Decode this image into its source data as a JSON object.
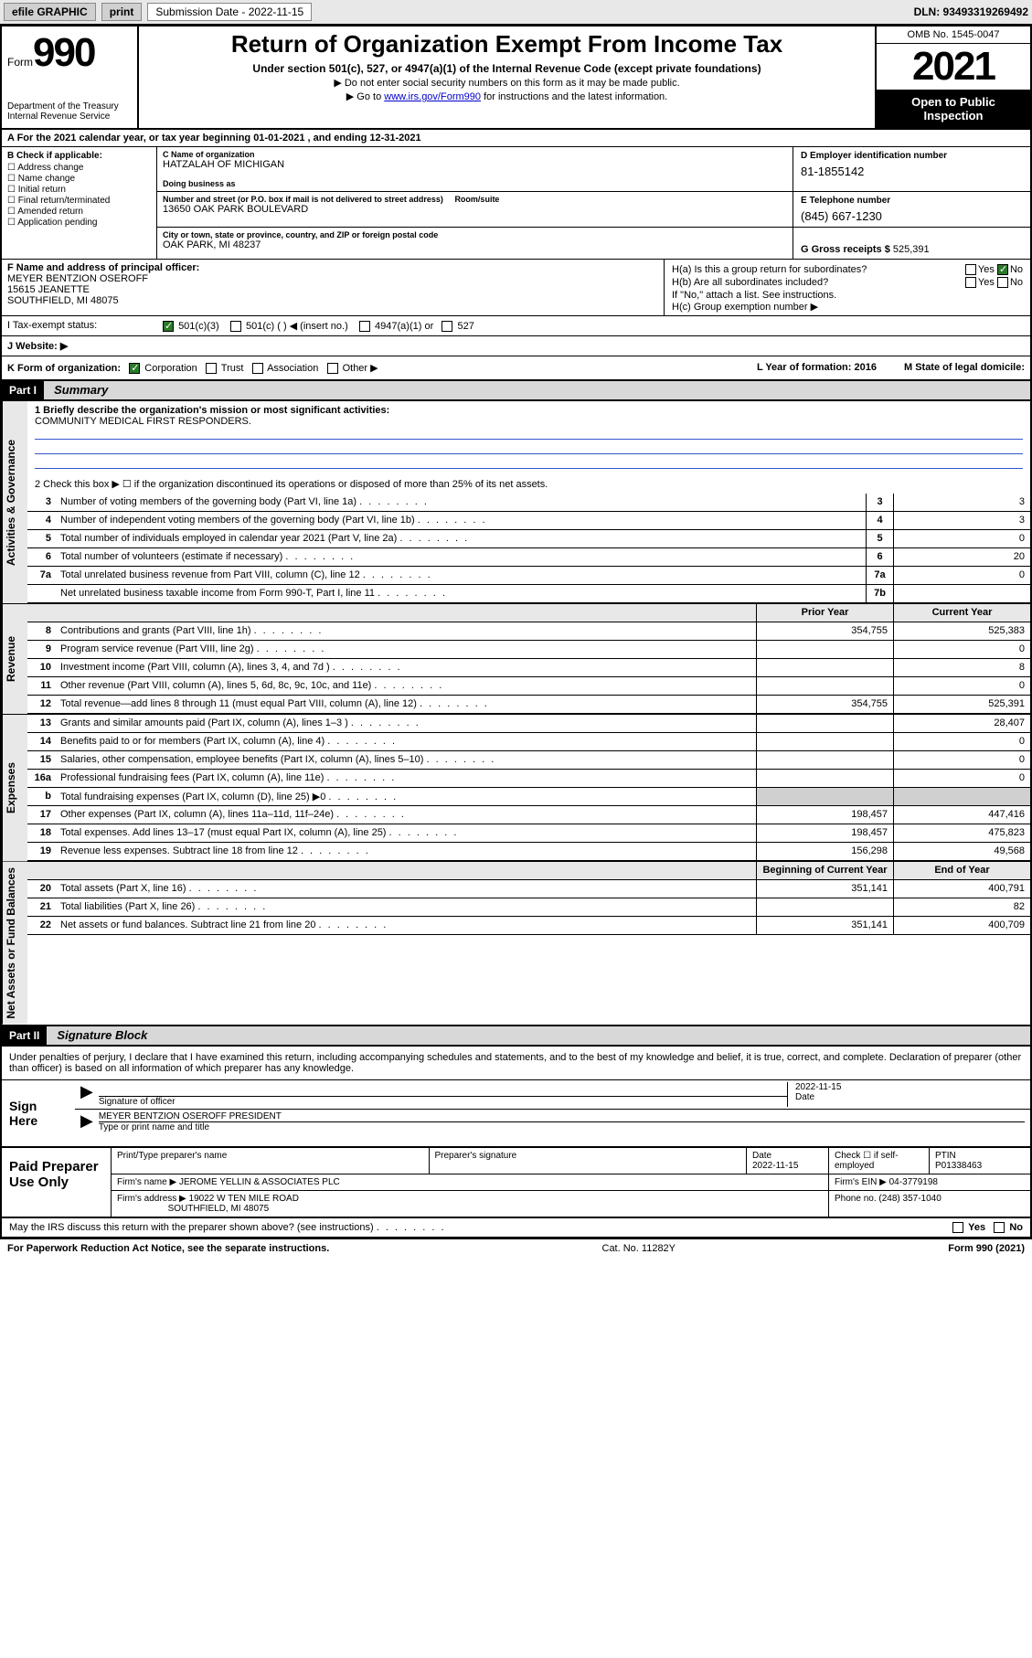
{
  "topbar": {
    "efile": "efile GRAPHIC",
    "print": "print",
    "sub_label": "Submission Date - 2022-11-15",
    "dln": "DLN: 93493319269492"
  },
  "header": {
    "form_label": "Form",
    "form_num": "990",
    "dept": "Department of the Treasury",
    "irs": "Internal Revenue Service",
    "title": "Return of Organization Exempt From Income Tax",
    "sub": "Under section 501(c), 527, or 4947(a)(1) of the Internal Revenue Code (except private foundations)",
    "note1": "▶ Do not enter social security numbers on this form as it may be made public.",
    "note2_pre": "▶ Go to ",
    "note2_link": "www.irs.gov/Form990",
    "note2_post": " for instructions and the latest information.",
    "omb": "OMB No. 1545-0047",
    "year": "2021",
    "inspect": "Open to Public Inspection"
  },
  "rowA": "A For the 2021 calendar year, or tax year beginning 01-01-2021   , and ending 12-31-2021",
  "colB": {
    "label": "B Check if applicable:",
    "items": [
      "Address change",
      "Name change",
      "Initial return",
      "Final return/terminated",
      "Amended return",
      "Application pending"
    ]
  },
  "colC": {
    "name_lbl": "C Name of organization",
    "name": "HATZALAH OF MICHIGAN",
    "dba_lbl": "Doing business as",
    "addr_lbl": "Number and street (or P.O. box if mail is not delivered to street address)",
    "room_lbl": "Room/suite",
    "addr": "13650 OAK PARK BOULEVARD",
    "city_lbl": "City or town, state or province, country, and ZIP or foreign postal code",
    "city": "OAK PARK, MI  48237"
  },
  "colD": {
    "ein_lbl": "D Employer identification number",
    "ein": "81-1855142",
    "tel_lbl": "E Telephone number",
    "tel": "(845) 667-1230",
    "gross_lbl": "G Gross receipts $",
    "gross": "525,391"
  },
  "colF": {
    "lbl": "F Name and address of principal officer:",
    "name": "MEYER BENTZION OSEROFF",
    "addr1": "15615 JEANETTE",
    "addr2": "SOUTHFIELD, MI  48075"
  },
  "colH": {
    "a": "H(a)  Is this a group return for subordinates?",
    "a_yes": "Yes",
    "a_no": "No",
    "b": "H(b)  Are all subordinates included?",
    "b_yes": "Yes",
    "b_no": "No",
    "b_note": "If \"No,\" attach a list. See instructions.",
    "c": "H(c)  Group exemption number ▶"
  },
  "rowI": {
    "lbl": "I   Tax-exempt status:",
    "c3": "501(c)(3)",
    "c": "501(c) (  ) ◀ (insert no.)",
    "a1": "4947(a)(1) or",
    "s527": "527"
  },
  "rowJ": {
    "lbl": "J   Website: ▶"
  },
  "rowK": {
    "lbl": "K Form of organization:",
    "corp": "Corporation",
    "trust": "Trust",
    "assoc": "Association",
    "other": "Other ▶",
    "l": "L Year of formation: 2016",
    "m": "M State of legal domicile:"
  },
  "parts": {
    "p1": "Part I",
    "p1_title": "Summary",
    "p2": "Part II",
    "p2_title": "Signature Block"
  },
  "sidebar": {
    "gov": "Activities & Governance",
    "rev": "Revenue",
    "exp": "Expenses",
    "net": "Net Assets or Fund Balances"
  },
  "mission": {
    "lbl": "1   Briefly describe the organization's mission or most significant activities:",
    "txt": "COMMUNITY MEDICAL FIRST RESPONDERS."
  },
  "line2": "2   Check this box ▶ ☐  if the organization discontinued its operations or disposed of more than 25% of its net assets.",
  "gov_rows": [
    {
      "n": "3",
      "t": "Number of voting members of the governing body (Part VI, line 1a)",
      "box": "3",
      "v": "3"
    },
    {
      "n": "4",
      "t": "Number of independent voting members of the governing body (Part VI, line 1b)",
      "box": "4",
      "v": "3"
    },
    {
      "n": "5",
      "t": "Total number of individuals employed in calendar year 2021 (Part V, line 2a)",
      "box": "5",
      "v": "0"
    },
    {
      "n": "6",
      "t": "Total number of volunteers (estimate if necessary)",
      "box": "6",
      "v": "20"
    },
    {
      "n": "7a",
      "t": "Total unrelated business revenue from Part VIII, column (C), line 12",
      "box": "7a",
      "v": "0"
    },
    {
      "n": "",
      "t": "Net unrelated business taxable income from Form 990-T, Part I, line 11",
      "box": "7b",
      "v": ""
    }
  ],
  "col_hdrs": {
    "prior": "Prior Year",
    "current": "Current Year",
    "begin": "Beginning of Current Year",
    "end": "End of Year"
  },
  "rev_rows": [
    {
      "n": "8",
      "t": "Contributions and grants (Part VIII, line 1h)",
      "p": "354,755",
      "c": "525,383"
    },
    {
      "n": "9",
      "t": "Program service revenue (Part VIII, line 2g)",
      "p": "",
      "c": "0"
    },
    {
      "n": "10",
      "t": "Investment income (Part VIII, column (A), lines 3, 4, and 7d )",
      "p": "",
      "c": "8"
    },
    {
      "n": "11",
      "t": "Other revenue (Part VIII, column (A), lines 5, 6d, 8c, 9c, 10c, and 11e)",
      "p": "",
      "c": "0"
    },
    {
      "n": "12",
      "t": "Total revenue—add lines 8 through 11 (must equal Part VIII, column (A), line 12)",
      "p": "354,755",
      "c": "525,391"
    }
  ],
  "exp_rows": [
    {
      "n": "13",
      "t": "Grants and similar amounts paid (Part IX, column (A), lines 1–3 )",
      "p": "",
      "c": "28,407"
    },
    {
      "n": "14",
      "t": "Benefits paid to or for members (Part IX, column (A), line 4)",
      "p": "",
      "c": "0"
    },
    {
      "n": "15",
      "t": "Salaries, other compensation, employee benefits (Part IX, column (A), lines 5–10)",
      "p": "",
      "c": "0"
    },
    {
      "n": "16a",
      "t": "Professional fundraising fees (Part IX, column (A), line 11e)",
      "p": "",
      "c": "0"
    },
    {
      "n": "b",
      "t": "Total fundraising expenses (Part IX, column (D), line 25) ▶0",
      "p": "shade",
      "c": "shade"
    },
    {
      "n": "17",
      "t": "Other expenses (Part IX, column (A), lines 11a–11d, 11f–24e)",
      "p": "198,457",
      "c": "447,416"
    },
    {
      "n": "18",
      "t": "Total expenses. Add lines 13–17 (must equal Part IX, column (A), line 25)",
      "p": "198,457",
      "c": "475,823"
    },
    {
      "n": "19",
      "t": "Revenue less expenses. Subtract line 18 from line 12",
      "p": "156,298",
      "c": "49,568"
    }
  ],
  "net_rows": [
    {
      "n": "20",
      "t": "Total assets (Part X, line 16)",
      "p": "351,141",
      "c": "400,791"
    },
    {
      "n": "21",
      "t": "Total liabilities (Part X, line 26)",
      "p": "",
      "c": "82"
    },
    {
      "n": "22",
      "t": "Net assets or fund balances. Subtract line 21 from line 20",
      "p": "351,141",
      "c": "400,709"
    }
  ],
  "penalty": "Under penalties of perjury, I declare that I have examined this return, including accompanying schedules and statements, and to the best of my knowledge and belief, it is true, correct, and complete. Declaration of preparer (other than officer) is based on all information of which preparer has any knowledge.",
  "sign": {
    "here": "Sign Here",
    "sig_lbl": "Signature of officer",
    "date_lbl": "Date",
    "date": "2022-11-15",
    "name": "MEYER BENTZION OSEROFF  PRESIDENT",
    "name_lbl": "Type or print name and title"
  },
  "prep": {
    "title": "Paid Preparer Use Only",
    "h1": "Print/Type preparer's name",
    "h2": "Preparer's signature",
    "h3": "Date",
    "h4": "Check ☐ if self-employed",
    "h5": "PTIN",
    "date": "2022-11-15",
    "ptin": "P01338463",
    "firm_lbl": "Firm's name    ▶",
    "firm": "JEROME YELLIN & ASSOCIATES PLC",
    "ein_lbl": "Firm's EIN ▶",
    "ein": "04-3779198",
    "addr_lbl": "Firm's address ▶",
    "addr1": "19022 W TEN MILE ROAD",
    "addr2": "SOUTHFIELD, MI  48075",
    "phone_lbl": "Phone no.",
    "phone": "(248) 357-1040"
  },
  "may": {
    "txt": "May the IRS discuss this return with the preparer shown above? (see instructions)",
    "yes": "Yes",
    "no": "No"
  },
  "footer": {
    "left": "For Paperwork Reduction Act Notice, see the separate instructions.",
    "mid": "Cat. No. 11282Y",
    "right": "Form 990 (2021)"
  }
}
